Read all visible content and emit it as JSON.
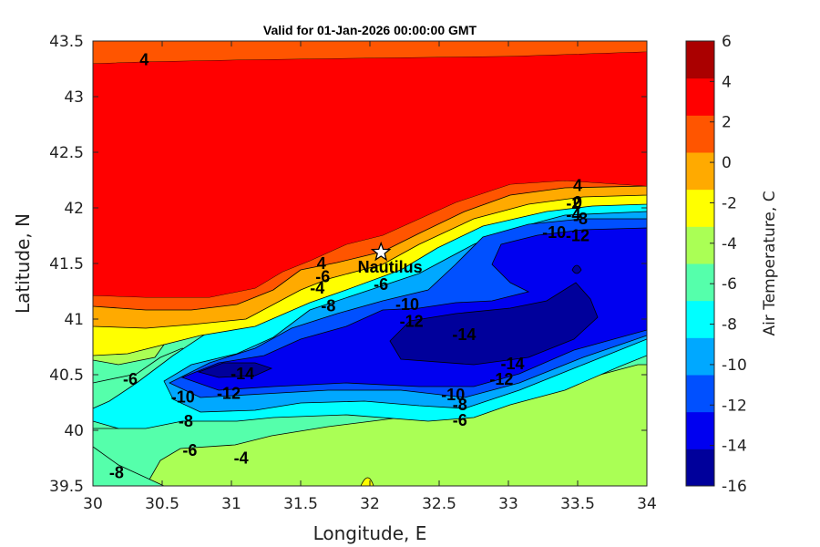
{
  "chart_data": {
    "type": "heatmap",
    "title": "Valid for 01-Jan-2026 00:00:00 GMT",
    "xlabel": "Longitude, E",
    "ylabel": "Latitude, N",
    "xlim": [
      30,
      34
    ],
    "ylim": [
      39.5,
      43.5
    ],
    "xticks": [
      "30",
      "30.5",
      "31",
      "31.5",
      "32",
      "32.5",
      "33",
      "33.5",
      "34"
    ],
    "yticks": [
      "39.5",
      "40",
      "40.5",
      "41",
      "41.5",
      "42",
      "42.5",
      "43",
      "43.5"
    ],
    "grid": false,
    "colorbar": {
      "label": "Air Temperature, C",
      "range": [
        -16,
        6
      ],
      "step": 2,
      "ticks": [
        "6",
        "4",
        "2",
        "0",
        "-2",
        "-4",
        "-6",
        "-8",
        "-10",
        "-12",
        "-14",
        "-16"
      ],
      "colors": [
        "#00009b",
        "#0000f0",
        "#0050ff",
        "#00a8ff",
        "#00ffff",
        "#55ffab",
        "#aaff55",
        "#ffff00",
        "#ffaa00",
        "#ff5500",
        "#ff0000",
        "#aa0000"
      ]
    },
    "station": {
      "name": "Nautilus",
      "lon": 32.08,
      "lat": 41.6
    },
    "contour_labels": [
      {
        "text": "4",
        "lon": 30.37,
        "lat": 43.33
      },
      {
        "text": "4",
        "lon": 31.65,
        "lat": 41.5
      },
      {
        "text": "-6",
        "lon": 31.66,
        "lat": 41.38
      },
      {
        "text": "-4",
        "lon": 31.62,
        "lat": 41.28
      },
      {
        "text": "-8",
        "lon": 31.7,
        "lat": 41.12
      },
      {
        "text": "-6",
        "lon": 32.08,
        "lat": 41.31
      },
      {
        "text": "-10",
        "lon": 32.27,
        "lat": 41.13
      },
      {
        "text": "-12",
        "lon": 32.3,
        "lat": 40.98
      },
      {
        "text": "-14",
        "lon": 32.68,
        "lat": 40.86
      },
      {
        "text": "-14",
        "lon": 31.08,
        "lat": 40.51
      },
      {
        "text": "-12",
        "lon": 30.98,
        "lat": 40.33
      },
      {
        "text": "-10",
        "lon": 30.65,
        "lat": 40.3
      },
      {
        "text": "-8",
        "lon": 30.67,
        "lat": 40.08
      },
      {
        "text": "-6",
        "lon": 30.27,
        "lat": 40.46
      },
      {
        "text": "-6",
        "lon": 30.7,
        "lat": 39.82
      },
      {
        "text": "-4",
        "lon": 31.07,
        "lat": 39.75
      },
      {
        "text": "-8",
        "lon": 30.17,
        "lat": 39.62
      },
      {
        "text": "-10",
        "lon": 32.6,
        "lat": 40.32
      },
      {
        "text": "-8",
        "lon": 32.65,
        "lat": 40.23
      },
      {
        "text": "-6",
        "lon": 32.65,
        "lat": 40.09
      },
      {
        "text": "-12",
        "lon": 32.95,
        "lat": 40.46
      },
      {
        "text": "-14",
        "lon": 33.03,
        "lat": 40.6
      },
      {
        "text": "4",
        "lon": 33.5,
        "lat": 42.2
      },
      {
        "text": "-2",
        "lon": 33.47,
        "lat": 42.04
      },
      {
        "text": "0",
        "lon": 33.5,
        "lat": 42.05
      },
      {
        "text": "-4",
        "lon": 33.47,
        "lat": 41.94
      },
      {
        "text": "-8",
        "lon": 33.52,
        "lat": 41.9
      },
      {
        "text": "-10",
        "lon": 33.33,
        "lat": 41.78
      },
      {
        "text": "-12",
        "lon": 33.5,
        "lat": 41.75
      }
    ]
  }
}
